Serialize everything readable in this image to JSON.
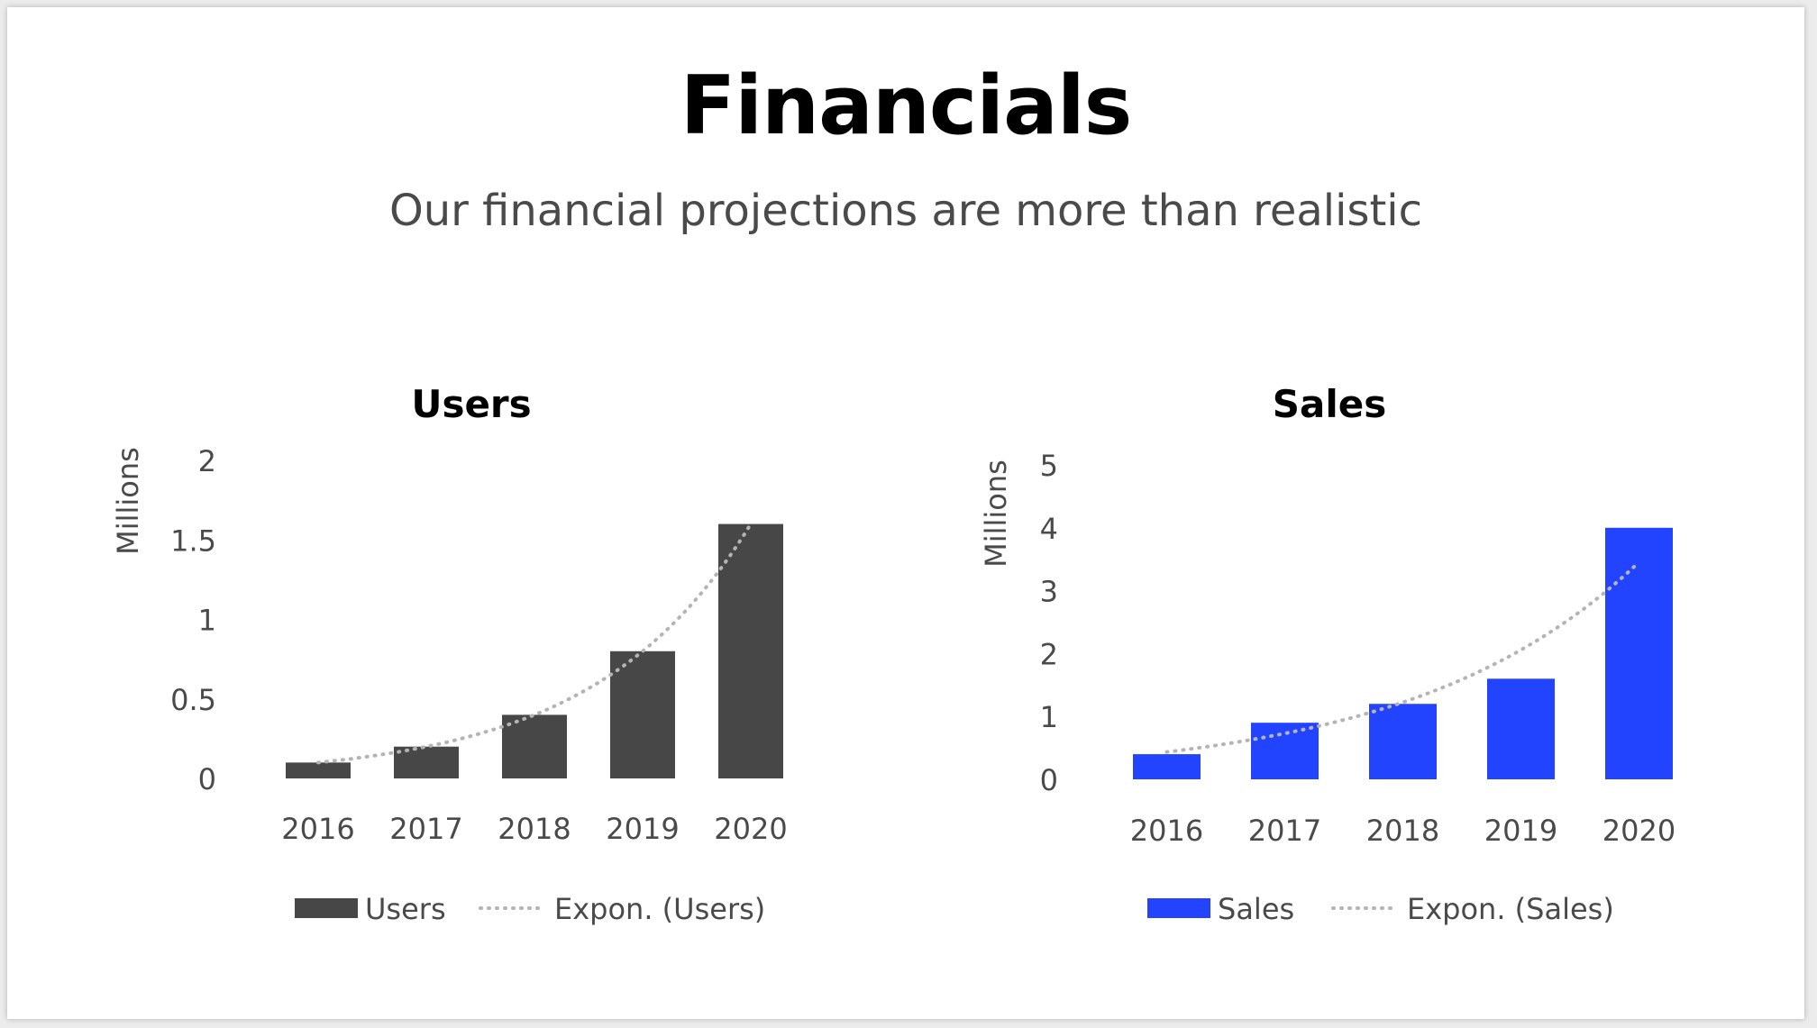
{
  "slide": {
    "title": "Financials",
    "subtitle": "Our financial projections are more than realistic"
  },
  "chart_data": [
    {
      "type": "bar",
      "title": "Users",
      "xlabel": "",
      "ylabel": "Millions",
      "categories": [
        "2016",
        "2017",
        "2018",
        "2019",
        "2020"
      ],
      "ylim": [
        0,
        2
      ],
      "yticks": [
        "0",
        "0.5",
        "1",
        "1.5",
        "2"
      ],
      "grid": false,
      "legend_position": "bottom",
      "series": [
        {
          "name": "Users",
          "values": [
            0.1,
            0.2,
            0.4,
            0.8,
            1.6
          ],
          "color": "#474747"
        }
      ],
      "trendline": {
        "name": "Expon. (Users)",
        "type": "exponential",
        "color": "#b4b4b4"
      }
    },
    {
      "type": "bar",
      "title": "Sales",
      "xlabel": "",
      "ylabel": "Millions",
      "categories": [
        "2016",
        "2017",
        "2018",
        "2019",
        "2020"
      ],
      "ylim": [
        0,
        5
      ],
      "yticks": [
        "0",
        "1",
        "2",
        "3",
        "4",
        "5"
      ],
      "grid": false,
      "legend_position": "bottom",
      "series": [
        {
          "name": "Sales",
          "values": [
            0.4,
            0.9,
            1.2,
            1.6,
            4.0
          ],
          "color": "#2344ff"
        }
      ],
      "trendline": {
        "name": "Expon. (Sales)",
        "type": "exponential",
        "color": "#b4b4b4"
      }
    }
  ]
}
